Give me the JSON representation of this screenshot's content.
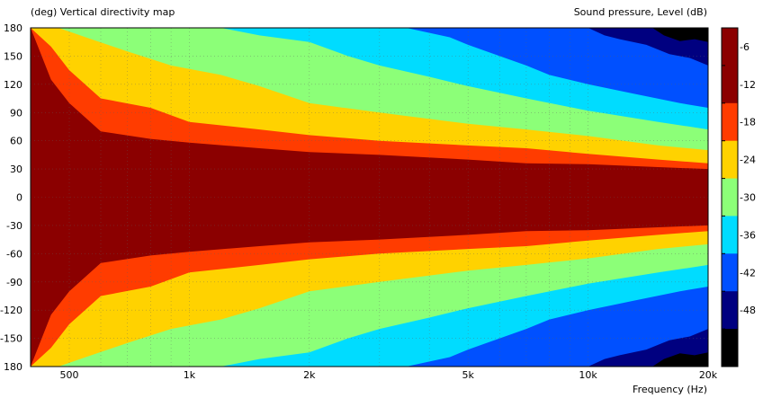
{
  "chart_data": {
    "type": "heatmap",
    "title_left": "(deg)  Vertical directivity map",
    "title_right": "Sound pressure, Level  (dB)",
    "xlabel": "Frequency  (Hz)",
    "x_scale": "log",
    "xlim": [
      400,
      20000
    ],
    "ylim": [
      -180,
      180
    ],
    "x_ticks": [
      {
        "value": 500,
        "label": "500"
      },
      {
        "value": 1000,
        "label": "1k"
      },
      {
        "value": 2000,
        "label": "2k"
      },
      {
        "value": 5000,
        "label": "5k"
      },
      {
        "value": 10000,
        "label": "10k"
      },
      {
        "value": 20000,
        "label": "20k"
      }
    ],
    "y_ticks": [
      {
        "value": 180,
        "label": "180"
      },
      {
        "value": 150,
        "label": "150"
      },
      {
        "value": 120,
        "label": "120"
      },
      {
        "value": 90,
        "label": "90"
      },
      {
        "value": 60,
        "label": "60"
      },
      {
        "value": 30,
        "label": "30"
      },
      {
        "value": 0,
        "label": "0"
      },
      {
        "value": -30,
        "label": "-30"
      },
      {
        "value": -60,
        "label": "-60"
      },
      {
        "value": -90,
        "label": "-90"
      },
      {
        "value": -120,
        "label": "-120"
      },
      {
        "value": -150,
        "label": "-150"
      },
      {
        "value": -180,
        "label": "180"
      }
    ],
    "grid": true,
    "colorbar": {
      "ticks": [
        "-6",
        "-12",
        "-18",
        "-24",
        "-30",
        "-36",
        "-42",
        "-48"
      ],
      "levels": [
        {
          "max": 0,
          "min": -6,
          "color": "#8b0000"
        },
        {
          "max": -6,
          "min": -12,
          "color": "#8b0000"
        },
        {
          "max": -12,
          "min": -18,
          "color": "#ff3c00"
        },
        {
          "max": -18,
          "min": -24,
          "color": "#ffd200"
        },
        {
          "max": -24,
          "min": -30,
          "color": "#8cff78"
        },
        {
          "max": -30,
          "min": -36,
          "color": "#00dcff"
        },
        {
          "max": -36,
          "min": -42,
          "color": "#0050ff"
        },
        {
          "max": -42,
          "min": -48,
          "color": "#000080"
        },
        {
          "max": -48,
          "min": -54,
          "color": "#000000"
        }
      ]
    },
    "contours": [
      {
        "level": -6,
        "color": "#ff3c00",
        "boundary": [
          [
            400,
            180
          ],
          [
            450,
            125
          ],
          [
            500,
            100
          ],
          [
            600,
            70
          ],
          [
            800,
            62
          ],
          [
            1000,
            58
          ],
          [
            1500,
            52
          ],
          [
            2000,
            48
          ],
          [
            3000,
            45
          ],
          [
            5000,
            40
          ],
          [
            7000,
            36
          ],
          [
            10000,
            35
          ],
          [
            15000,
            32
          ],
          [
            20000,
            30
          ]
        ]
      },
      {
        "level": -12,
        "color": "#ffd200",
        "boundary": [
          [
            400,
            180
          ],
          [
            450,
            160
          ],
          [
            500,
            135
          ],
          [
            600,
            105
          ],
          [
            800,
            95
          ],
          [
            1000,
            80
          ],
          [
            1500,
            72
          ],
          [
            2000,
            66
          ],
          [
            3000,
            60
          ],
          [
            5000,
            55
          ],
          [
            7000,
            52
          ],
          [
            10000,
            46
          ],
          [
            15000,
            40
          ],
          [
            20000,
            36
          ]
        ]
      },
      {
        "level": -18,
        "color": "#8cff78",
        "boundary": [
          [
            470,
            180
          ],
          [
            550,
            170
          ],
          [
            700,
            155
          ],
          [
            900,
            140
          ],
          [
            1200,
            130
          ],
          [
            1500,
            118
          ],
          [
            2000,
            100
          ],
          [
            3000,
            90
          ],
          [
            5000,
            78
          ],
          [
            7000,
            72
          ],
          [
            10000,
            65
          ],
          [
            15000,
            55
          ],
          [
            20000,
            50
          ]
        ]
      },
      {
        "level": -24,
        "color": "#00dcff",
        "boundary": [
          [
            1200,
            180
          ],
          [
            1500,
            172
          ],
          [
            2000,
            165
          ],
          [
            2500,
            150
          ],
          [
            3000,
            140
          ],
          [
            4000,
            128
          ],
          [
            5000,
            118
          ],
          [
            7000,
            105
          ],
          [
            10000,
            92
          ],
          [
            15000,
            80
          ],
          [
            20000,
            72
          ]
        ]
      },
      {
        "level": -30,
        "color": "#0050ff",
        "boundary": [
          [
            3500,
            180
          ],
          [
            4500,
            170
          ],
          [
            5000,
            162
          ],
          [
            6000,
            150
          ],
          [
            7000,
            140
          ],
          [
            8000,
            130
          ],
          [
            10000,
            120
          ],
          [
            13000,
            110
          ],
          [
            17000,
            100
          ],
          [
            20000,
            95
          ]
        ]
      },
      {
        "level": -36,
        "color": "#000080",
        "boundary": [
          [
            10000,
            180
          ],
          [
            11000,
            172
          ],
          [
            12000,
            168
          ],
          [
            14000,
            162
          ],
          [
            16000,
            152
          ],
          [
            18000,
            148
          ],
          [
            20000,
            140
          ]
        ]
      },
      {
        "level": -42,
        "color": "#000000",
        "boundary": [
          [
            14500,
            180
          ],
          [
            15500,
            172
          ],
          [
            17000,
            166
          ],
          [
            18500,
            168
          ],
          [
            20000,
            165
          ]
        ]
      }
    ]
  }
}
